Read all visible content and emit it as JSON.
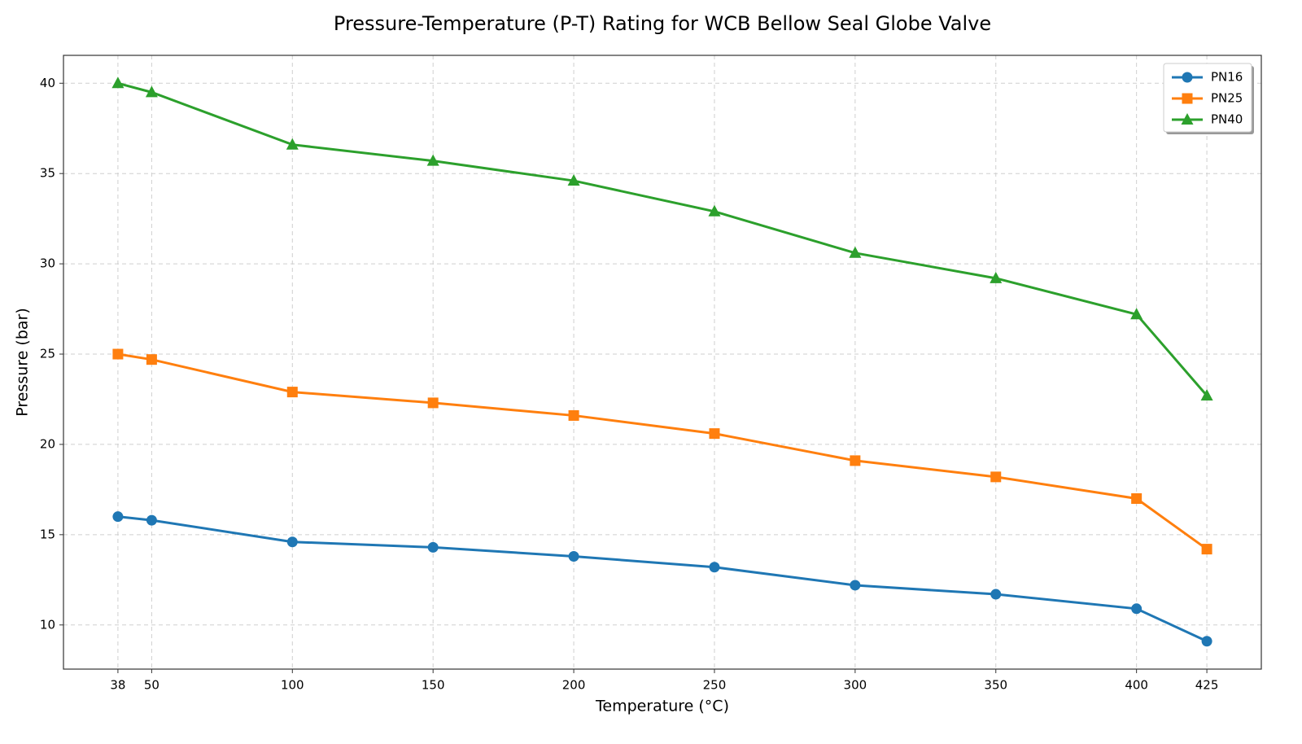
{
  "chart_data": {
    "type": "line",
    "title": "Pressure-Temperature (P-T) Rating for WCB Bellow Seal Globe Valve",
    "x_label": "Temperature (°C)",
    "y_label": "Pressure (bar)",
    "x": [
      38,
      50,
      100,
      150,
      200,
      250,
      300,
      350,
      400,
      425
    ],
    "series": [
      {
        "name": "PN16",
        "color": "#1f77b4",
        "marker": "circle",
        "values": [
          16,
          15.8,
          14.6,
          14.3,
          13.8,
          13.2,
          12.2,
          11.7,
          10.9,
          9.1
        ]
      },
      {
        "name": "PN25",
        "color": "#ff7f0e",
        "marker": "square",
        "values": [
          25,
          24.7,
          22.9,
          22.3,
          21.6,
          20.6,
          19.1,
          18.2,
          17.0,
          14.2
        ]
      },
      {
        "name": "PN40",
        "color": "#2ca02c",
        "marker": "triangle",
        "values": [
          40,
          39.5,
          36.6,
          35.7,
          34.6,
          32.9,
          30.6,
          29.2,
          27.2,
          22.7
        ]
      }
    ],
    "xlim": [
      18.65,
      444.35
    ],
    "xticks": [
      38,
      50,
      100,
      150,
      200,
      250,
      300,
      350,
      400,
      425
    ],
    "ylim": [
      7.555,
      41.545
    ],
    "yticks": [
      10,
      15,
      20,
      25,
      30,
      35,
      40
    ],
    "grid": true,
    "legend": "upper right"
  }
}
